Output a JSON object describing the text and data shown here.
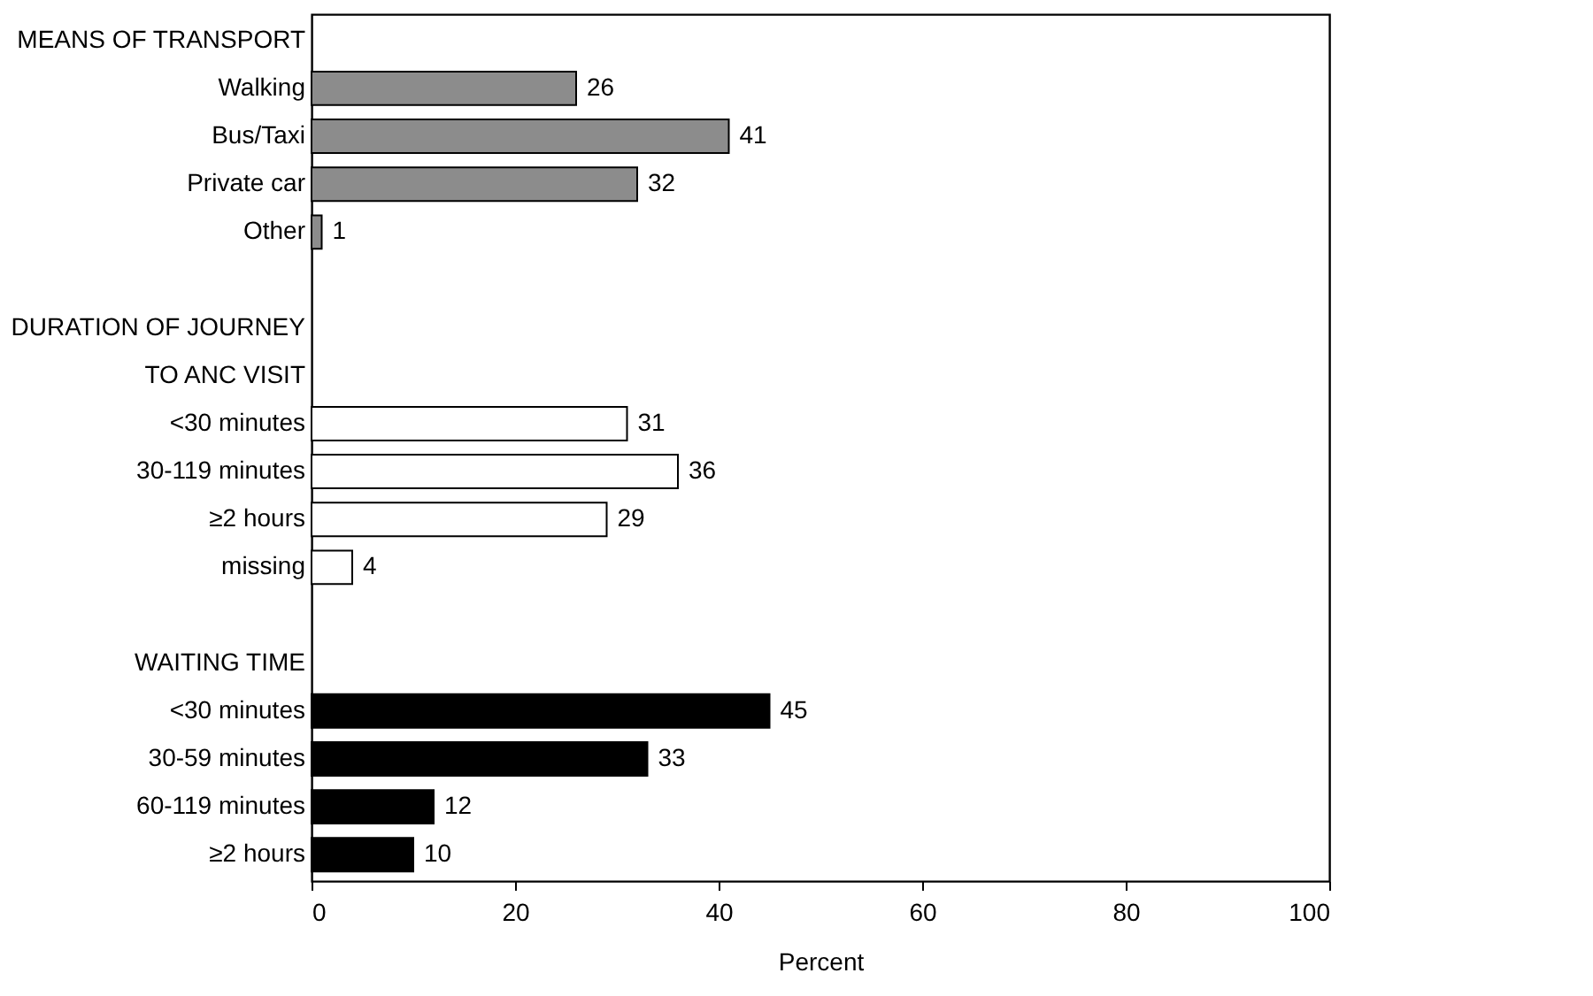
{
  "chart_data": {
    "type": "bar",
    "orientation": "horizontal",
    "xlabel": "Percent",
    "categories": [
      "MEANS OF TRANSPORT",
      "Walking",
      "Bus/Taxi",
      "Private car",
      "Other",
      null,
      "DURATION OF JOURNEY",
      "TO ANC VISIT",
      "<30 minutes",
      "30-119 minutes",
      "≥2 hours",
      "missing",
      null,
      "WAITING TIME",
      "<30 minutes",
      "30-59 minutes",
      "60-119 minutes",
      "≥2 hours"
    ],
    "series": [
      {
        "color": "#8c8c8c",
        "values": [
          null,
          26,
          41,
          32,
          1,
          null,
          null,
          null,
          null,
          null,
          null,
          null,
          null,
          null,
          null,
          null,
          null,
          null
        ]
      },
      {
        "color": "#ffffff",
        "values": [
          null,
          null,
          null,
          null,
          null,
          null,
          null,
          null,
          31,
          36,
          29,
          4,
          null,
          null,
          null,
          null,
          null,
          null
        ]
      },
      {
        "color": "#000000",
        "values": [
          null,
          null,
          null,
          null,
          null,
          null,
          null,
          null,
          null,
          null,
          null,
          null,
          null,
          null,
          45,
          33,
          12,
          10
        ]
      }
    ],
    "xlim": [
      0,
      100
    ],
    "xticks": [
      0,
      20,
      40,
      60,
      80,
      100
    ],
    "data_labels": true,
    "grid": false
  }
}
